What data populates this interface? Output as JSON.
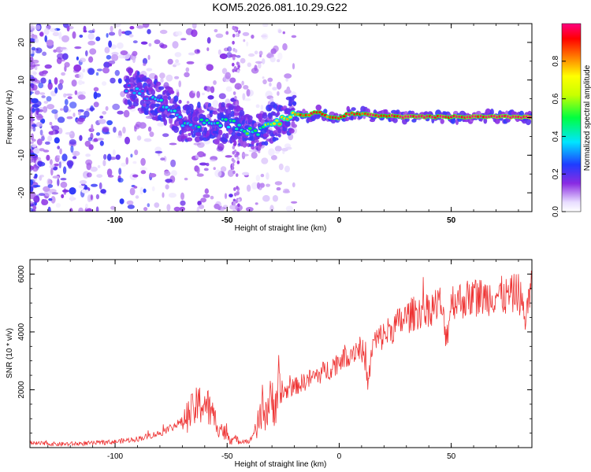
{
  "title": "KOM5.2026.081.10.29.G22",
  "colorbar": {
    "label": "Normalized spectral amplitude",
    "ticks": [
      "0.0",
      "0.2",
      "0.4",
      "0.6",
      "0.8"
    ]
  },
  "chart_data": [
    {
      "type": "heatmap",
      "title": "",
      "xlabel": "Height of straight line (km)",
      "ylabel": "Frequency (Hz)",
      "xlim": [
        -138,
        86
      ],
      "ylim": [
        -25,
        25
      ],
      "xticks": [
        -100,
        -50,
        0,
        50
      ],
      "xtick_labels": [
        "-100",
        "-50",
        "0",
        "50"
      ],
      "yticks": [
        -20,
        -10,
        0,
        10,
        20
      ],
      "ytick_labels": [
        "-20",
        "-10",
        "0",
        "10",
        "20"
      ],
      "zlim": [
        0,
        1
      ],
      "ridge": {
        "x": [
          -95,
          -88,
          -80,
          -75,
          -70,
          -65,
          -60,
          -55,
          -50,
          -45,
          -40,
          -37,
          -33,
          -28,
          -22,
          -18,
          -14,
          -10,
          -7,
          -4,
          0,
          4,
          8,
          12,
          15,
          20,
          30,
          40,
          50,
          60,
          70,
          80,
          86
        ],
        "frequency": [
          8,
          6.5,
          4,
          2.5,
          -1.5,
          -2,
          -1,
          -1.5,
          -1.5,
          -2,
          -3.5,
          -4,
          -2,
          -1,
          0.5,
          1,
          0.5,
          1.5,
          1,
          0,
          0,
          1,
          1,
          1,
          0.5,
          0.5,
          0.2,
          0.2,
          0.2,
          0.2,
          0.2,
          0.2,
          0.2
        ],
        "amplitude": [
          0.25,
          0.3,
          0.35,
          0.35,
          0.4,
          0.35,
          0.45,
          0.4,
          0.4,
          0.45,
          0.5,
          0.45,
          0.55,
          0.7,
          0.8,
          0.85,
          0.9,
          0.95,
          0.9,
          0.85,
          0.9,
          0.95,
          0.9,
          0.9,
          0.95,
          0.95,
          1.0,
          1.0,
          1.0,
          1.0,
          1.0,
          1.0,
          1.0
        ]
      }
    },
    {
      "type": "line",
      "title": "",
      "xlabel": "Height of straight line (km)",
      "ylabel": "SNR (10 * v/v)",
      "xlim": [
        -138,
        86
      ],
      "ylim": [
        0,
        6500
      ],
      "xticks": [
        -100,
        -50,
        0,
        50
      ],
      "xtick_labels": [
        "-100",
        "-50",
        "0",
        "50"
      ],
      "yticks": [
        2000,
        4000,
        6000
      ],
      "ytick_labels": [
        "2000",
        "4000",
        "6000"
      ],
      "series": [
        {
          "name": "SNR",
          "color": "#ee3333",
          "x": [
            -138,
            -125,
            -110,
            -100,
            -90,
            -80,
            -75,
            -70,
            -65,
            -62,
            -60,
            -58,
            -55,
            -52,
            -50,
            -45,
            -42,
            -40,
            -37,
            -35,
            -32,
            -30,
            -28,
            -25,
            -20,
            -15,
            -10,
            -5,
            0,
            5,
            10,
            13,
            15,
            20,
            25,
            30,
            35,
            40,
            45,
            48,
            50,
            55,
            60,
            65,
            70,
            75,
            80,
            83,
            86
          ],
          "y": [
            150,
            120,
            150,
            200,
            300,
            500,
            700,
            900,
            1300,
            1500,
            1600,
            1300,
            900,
            600,
            400,
            200,
            250,
            200,
            700,
            1000,
            1400,
            1600,
            1700,
            1900,
            2100,
            2300,
            2500,
            2700,
            3000,
            3300,
            3500,
            2200,
            3600,
            3900,
            4200,
            4500,
            4700,
            4800,
            5000,
            3800,
            5100,
            5100,
            5200,
            5200,
            5300,
            5200,
            5400,
            4500,
            5500
          ]
        }
      ]
    }
  ]
}
